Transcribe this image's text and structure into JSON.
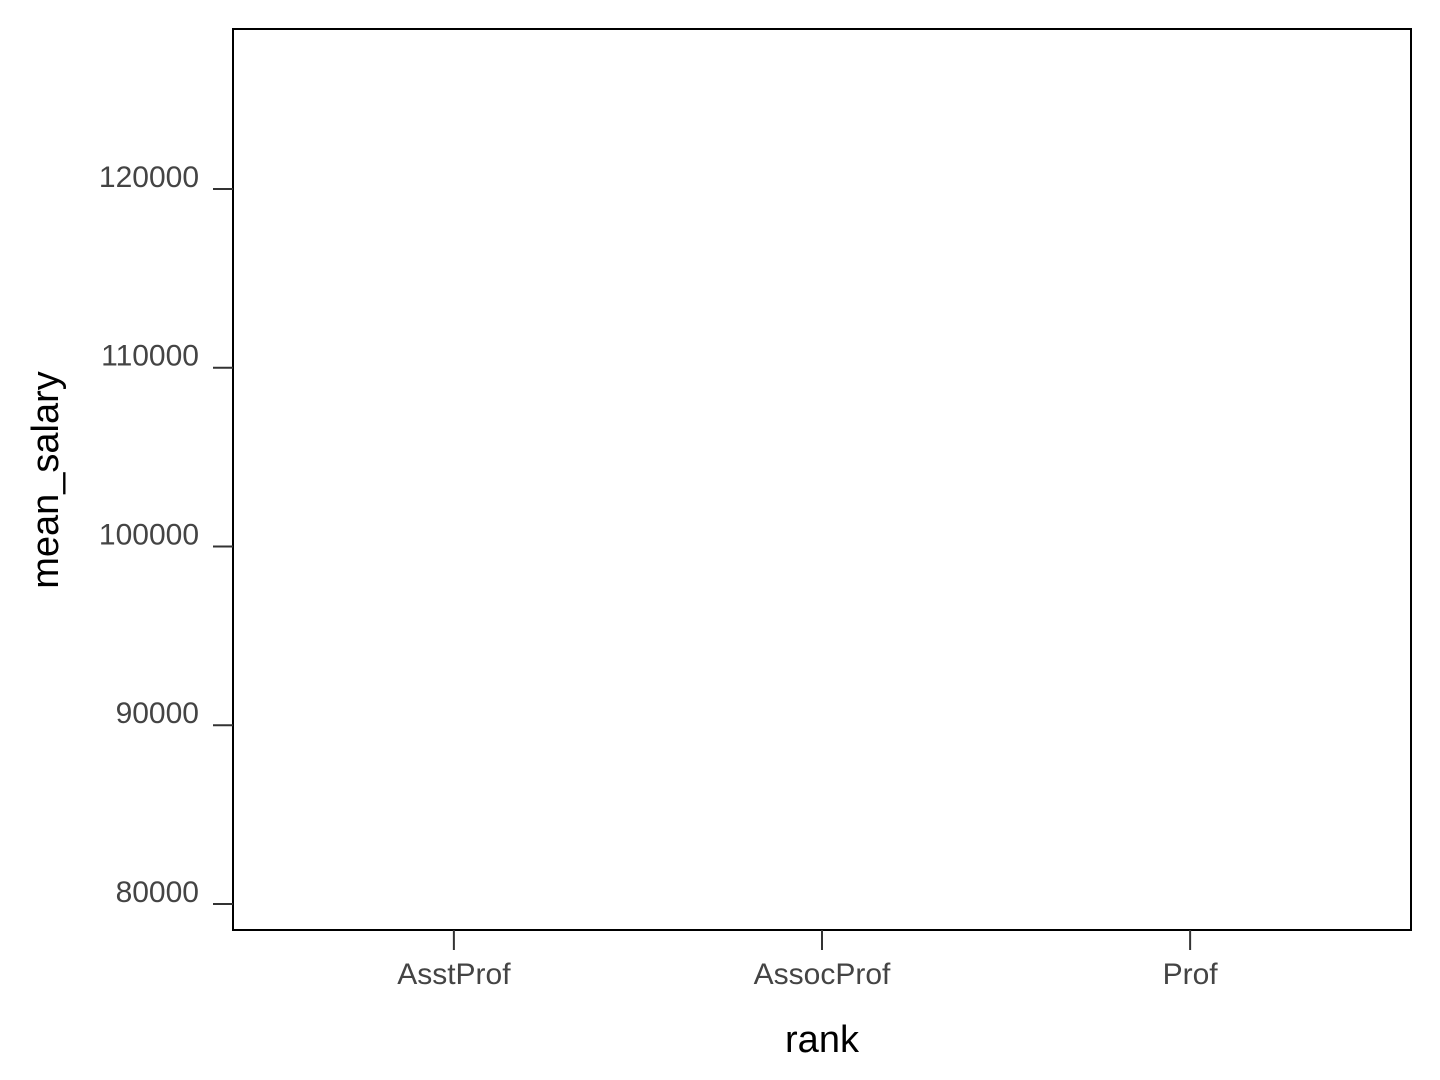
{
  "chart_data": {
    "type": "bar",
    "x_label": "rank",
    "y_label": "mean_salary",
    "categories": [
      "AsstProf",
      "AssocProf",
      "Prof"
    ],
    "ylim": [
      78545,
      128951
    ],
    "yticks": [
      80000,
      90000,
      100000,
      110000,
      120000
    ]
  }
}
